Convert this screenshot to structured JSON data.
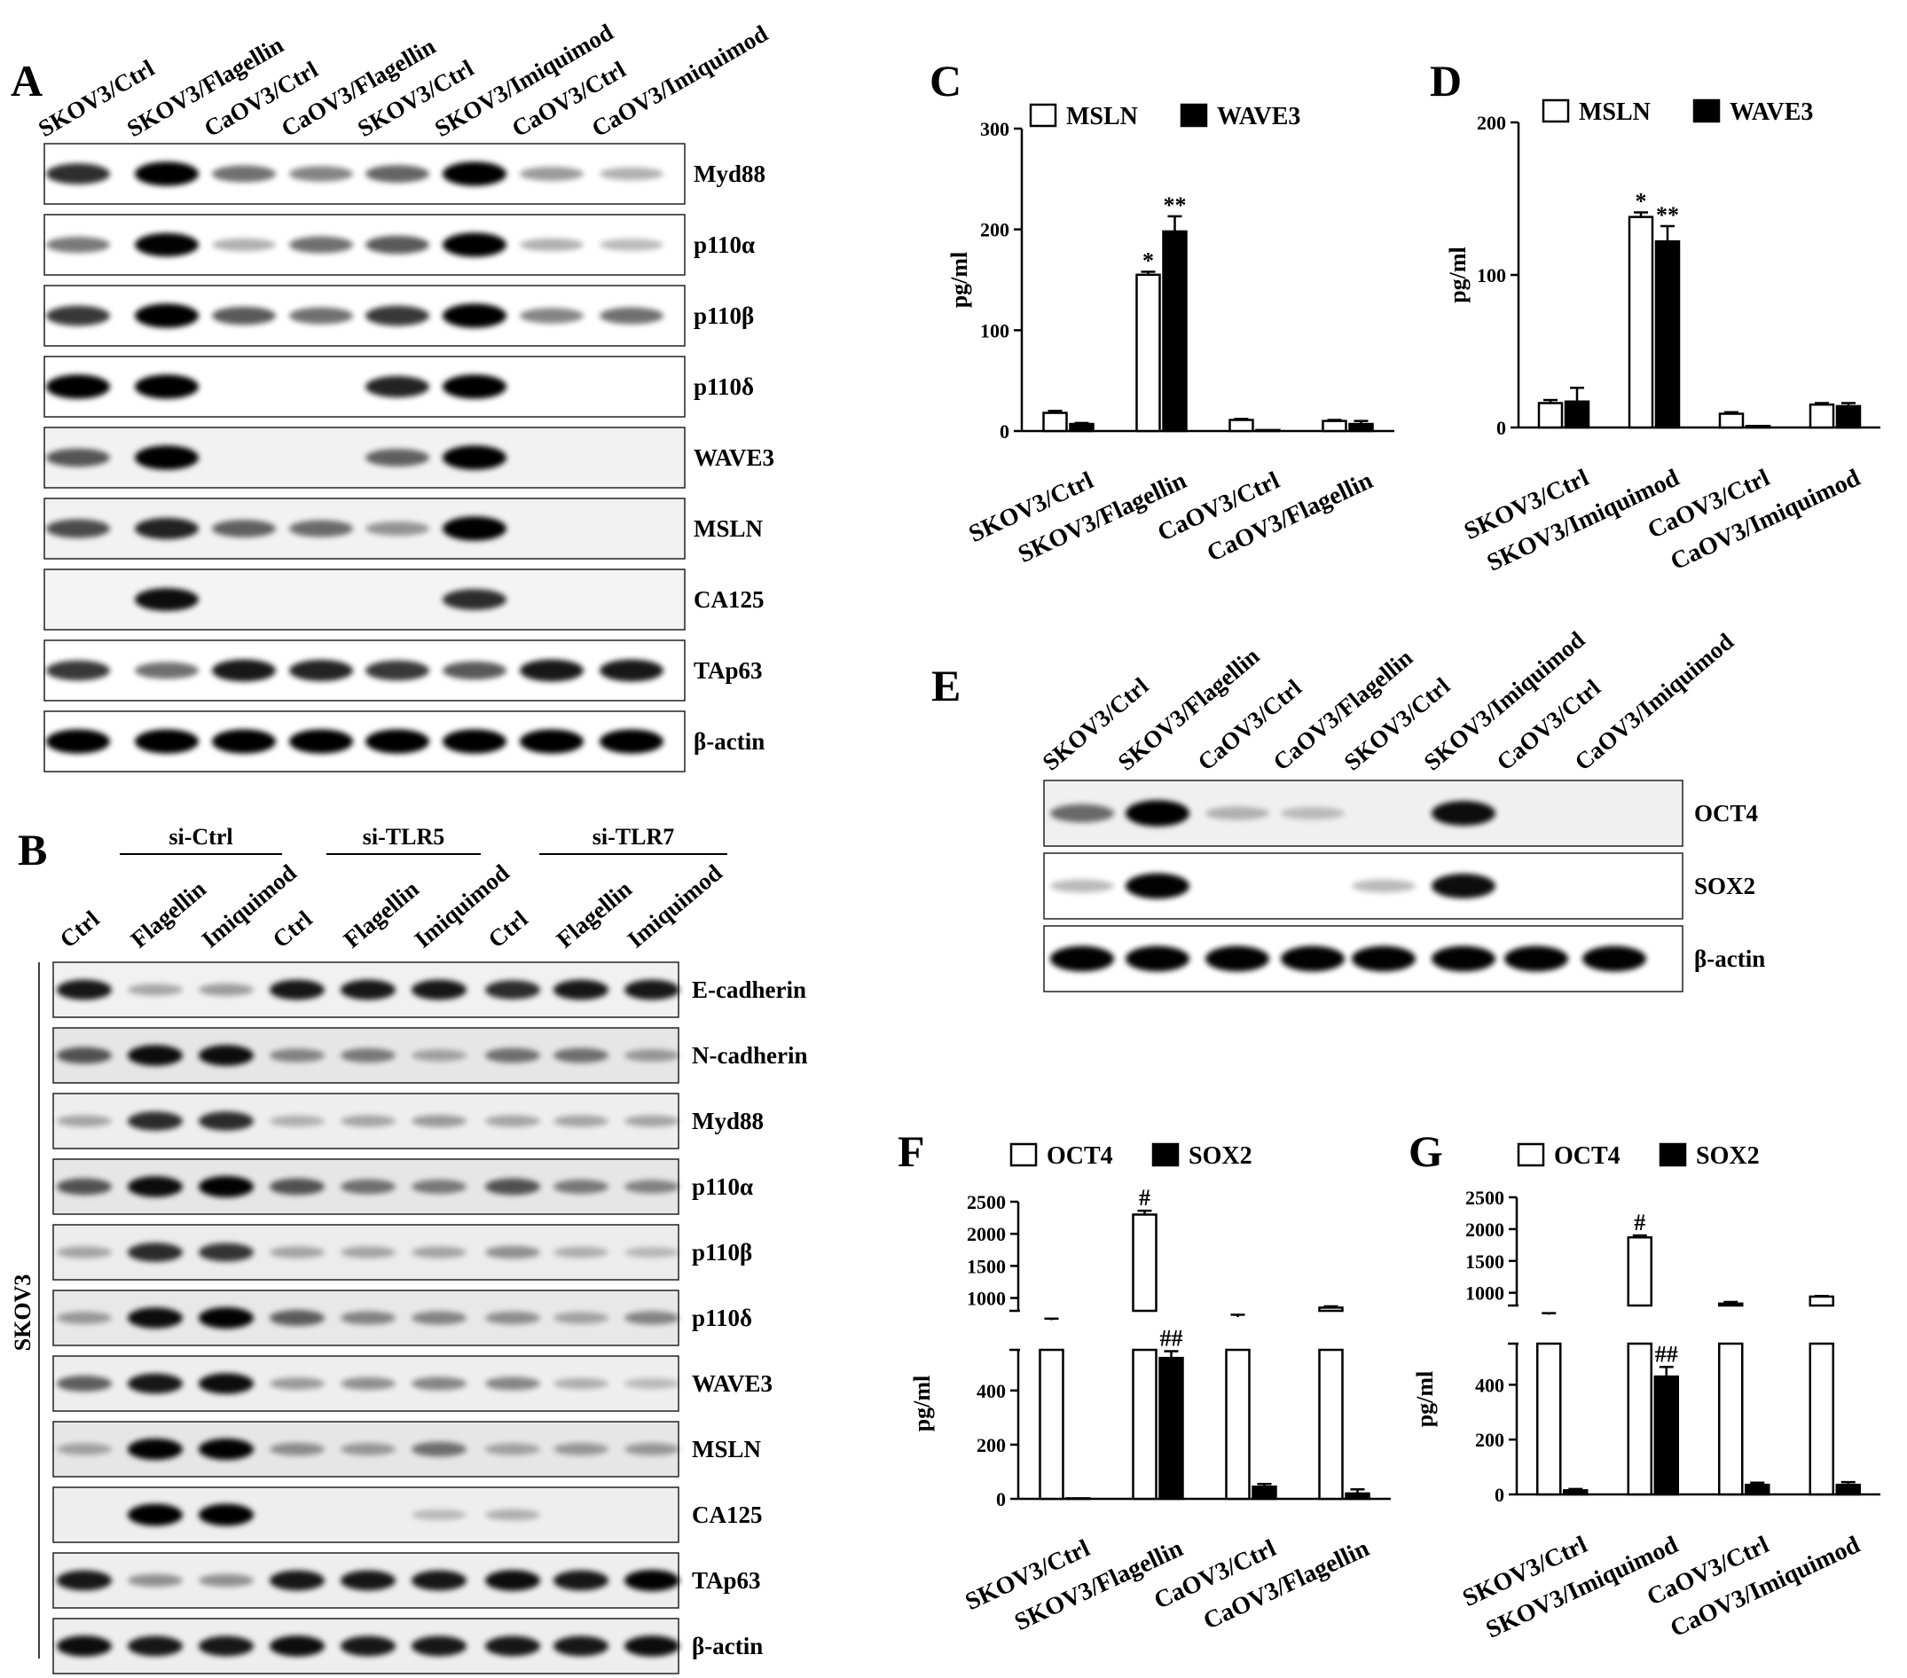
{
  "panels": {
    "A": {
      "letter": "A",
      "lanes": [
        "SKOV3/Ctrl",
        "SKOV3/Flagellin",
        "CaOV3/Ctrl",
        "CaOV3/Flagellin",
        "SKOV3/Ctrl",
        "SKOV3/Imiquimod",
        "CaOV3/Ctrl",
        "CaOV3/Imiquimod"
      ],
      "proteins": [
        {
          "name": "Myd88",
          "bg": "#ffffff",
          "bands": [
            0.75,
            1,
            0.45,
            0.35,
            0.5,
            1,
            0.25,
            0.15
          ]
        },
        {
          "name": "p110α",
          "bg": "#ffffff",
          "bands": [
            0.4,
            0.95,
            0.15,
            0.45,
            0.55,
            1,
            0.15,
            0.1
          ]
        },
        {
          "name": "p110β",
          "bg": "#ffffff",
          "bands": [
            0.7,
            1,
            0.55,
            0.45,
            0.7,
            1,
            0.35,
            0.45
          ]
        },
        {
          "name": "p110δ",
          "bg": "#ffffff",
          "bands": [
            1,
            1,
            0,
            0,
            0.8,
            1,
            0,
            0
          ]
        },
        {
          "name": "WAVE3",
          "bg": "#f2f2f2",
          "bands": [
            0.55,
            1,
            0,
            0,
            0.5,
            1,
            0,
            0
          ]
        },
        {
          "name": "MSLN",
          "bg": "#f2f2f2",
          "bands": [
            0.6,
            0.8,
            0.5,
            0.45,
            0.25,
            1,
            0,
            0
          ]
        },
        {
          "name": "CA125",
          "bg": "#f4f4f4",
          "bands": [
            0,
            0.9,
            0,
            0,
            0,
            0.75,
            0,
            0
          ]
        },
        {
          "name": "TAp63",
          "bg": "#ffffff",
          "bands": [
            0.7,
            0.45,
            0.85,
            0.8,
            0.7,
            0.55,
            0.85,
            0.85
          ]
        },
        {
          "name": "β-actin",
          "bg": "#ffffff",
          "bands": [
            1,
            1,
            1,
            1,
            1,
            1,
            1,
            1
          ]
        }
      ]
    },
    "B": {
      "letter": "B",
      "groups": [
        "si-Ctrl",
        "si-TLR5",
        "si-TLR7"
      ],
      "lanes": [
        "Ctrl",
        "Flagellin",
        "Imiquimod",
        "Ctrl",
        "Flagellin",
        "Imiquimod",
        "Ctrl",
        "Flagellin",
        "Imiquimod"
      ],
      "side_label": "SKOV3",
      "proteins": [
        {
          "name": "E-cadherin",
          "bg": "#f1f1f1",
          "bands": [
            0.85,
            0.15,
            0.2,
            0.85,
            0.85,
            0.85,
            0.75,
            0.85,
            0.85
          ]
        },
        {
          "name": "N-cadherin",
          "bg": "#e6e6e6",
          "bands": [
            0.55,
            0.9,
            0.9,
            0.3,
            0.35,
            0.15,
            0.4,
            0.4,
            0.2
          ]
        },
        {
          "name": "Myd88",
          "bg": "#eeeeee",
          "bands": [
            0.15,
            0.75,
            0.75,
            0.1,
            0.15,
            0.2,
            0.15,
            0.15,
            0.15
          ]
        },
        {
          "name": "p110α",
          "bg": "#e6e6e6",
          "bands": [
            0.55,
            0.9,
            0.95,
            0.55,
            0.4,
            0.35,
            0.55,
            0.35,
            0.3
          ]
        },
        {
          "name": "p110β",
          "bg": "#ececec",
          "bands": [
            0.15,
            0.75,
            0.7,
            0.15,
            0.15,
            0.15,
            0.25,
            0.1,
            0.05
          ]
        },
        {
          "name": "p110δ",
          "bg": "#e8e8e8",
          "bands": [
            0.2,
            0.9,
            0.95,
            0.5,
            0.3,
            0.3,
            0.25,
            0.15,
            0.3
          ]
        },
        {
          "name": "WAVE3",
          "bg": "#eeeeee",
          "bands": [
            0.5,
            0.85,
            0.9,
            0.2,
            0.25,
            0.3,
            0.3,
            0.1,
            0.05
          ]
        },
        {
          "name": "MSLN",
          "bg": "#e6e6e6",
          "bands": [
            0.15,
            0.95,
            0.95,
            0.25,
            0.2,
            0.4,
            0.15,
            0.2,
            0.2
          ]
        },
        {
          "name": "CA125",
          "bg": "#eeeeee",
          "bands": [
            0,
            1,
            1,
            0,
            0,
            0.05,
            0.1,
            0,
            0
          ]
        },
        {
          "name": "TAp63",
          "bg": "#eeeeee",
          "bands": [
            0.85,
            0.25,
            0.25,
            0.85,
            0.85,
            0.85,
            0.9,
            0.85,
            0.95
          ]
        },
        {
          "name": "β-actin",
          "bg": "#eeeeee",
          "bands": [
            0.9,
            0.85,
            0.85,
            0.9,
            0.85,
            0.85,
            0.85,
            0.85,
            0.9
          ]
        }
      ]
    },
    "E": {
      "letter": "E",
      "lanes": [
        "SKOV3/Ctrl",
        "SKOV3/Flagellin",
        "CaOV3/Ctrl",
        "CaOV3/Flagellin",
        "SKOV3/Ctrl",
        "SKOV3/Imiquimod",
        "CaOV3/Ctrl",
        "CaOV3/Imiquimod"
      ],
      "proteins": [
        {
          "name": "OCT4",
          "bg": "#f0f0f0",
          "bands": [
            0.45,
            1,
            0.1,
            0.05,
            0,
            0.9,
            0,
            0
          ]
        },
        {
          "name": "SOX2",
          "bg": "#ffffff",
          "bands": [
            0.1,
            0.95,
            0,
            0,
            0.1,
            0.9,
            0,
            0
          ]
        },
        {
          "name": "β-actin",
          "bg": "#ffffff",
          "bands": [
            0.95,
            0.95,
            0.95,
            0.95,
            0.95,
            0.95,
            0.95,
            0.95
          ]
        }
      ]
    }
  },
  "chart_data": [
    {
      "panel": "C",
      "type": "bar",
      "ylabel": "pg/ml",
      "ylim": [
        0,
        300
      ],
      "yticks": [
        0,
        100,
        200,
        300
      ],
      "categories": [
        "SKOV3/Ctrl",
        "SKOV3/Flagellin",
        "CaOV3/Ctrl",
        "CaOV3/Flagellin"
      ],
      "series": [
        {
          "name": "MSLN",
          "fill": "#ffffff",
          "values": [
            18,
            155,
            11,
            10
          ],
          "errors": [
            2,
            3,
            1,
            1
          ],
          "sig": [
            "",
            "*",
            "",
            ""
          ]
        },
        {
          "name": "WAVE3",
          "fill": "#000000",
          "values": [
            7,
            198,
            1,
            7
          ],
          "errors": [
            1,
            15,
            0,
            3
          ],
          "sig": [
            "",
            "**",
            "",
            ""
          ]
        }
      ]
    },
    {
      "panel": "D",
      "type": "bar",
      "ylabel": "pg/ml",
      "ylim": [
        0,
        200
      ],
      "yticks": [
        0,
        100,
        200
      ],
      "categories": [
        "SKOV3/Ctrl",
        "SKOV3/Imiquimod",
        "CaOV3/Ctrl",
        "CaOV3/Imiquimod"
      ],
      "series": [
        {
          "name": "MSLN",
          "fill": "#ffffff",
          "values": [
            16,
            138,
            9,
            15
          ],
          "errors": [
            2,
            3,
            1,
            1
          ],
          "sig": [
            "",
            "*",
            "",
            ""
          ]
        },
        {
          "name": "WAVE3",
          "fill": "#000000",
          "values": [
            17,
            122,
            1,
            14
          ],
          "errors": [
            9,
            10,
            0,
            2
          ],
          "sig": [
            "",
            "**",
            "",
            ""
          ]
        }
      ]
    },
    {
      "panel": "F",
      "type": "bar",
      "ylabel": "pg/ml",
      "broken_axis": true,
      "lower_ylim": [
        0,
        550
      ],
      "upper_ylim": [
        800,
        2500
      ],
      "lower_yticks": [
        0,
        200,
        400
      ],
      "upper_yticks": [
        1000,
        1500,
        2000,
        2500
      ],
      "categories": [
        "SKOV3/Ctrl",
        "SKOV3/Flagellin",
        "CaOV3/Ctrl",
        "CaOV3/Flagellin"
      ],
      "series": [
        {
          "name": "OCT4",
          "fill": "#ffffff",
          "values": [
            740,
            2300,
            760,
            850
          ],
          "errors": [
            10,
            60,
            15,
            20
          ],
          "sig": [
            "",
            "#",
            "",
            ""
          ]
        },
        {
          "name": "SOX2",
          "fill": "#000000",
          "values": [
            2,
            520,
            45,
            20
          ],
          "errors": [
            0,
            25,
            10,
            15
          ],
          "sig": [
            "",
            "##",
            "",
            ""
          ]
        }
      ]
    },
    {
      "panel": "G",
      "type": "bar",
      "ylabel": "pg/ml",
      "broken_axis": true,
      "lower_ylim": [
        0,
        550
      ],
      "upper_ylim": [
        800,
        2500
      ],
      "lower_yticks": [
        0,
        200,
        400
      ],
      "upper_yticks": [
        1000,
        1500,
        2000,
        2500
      ],
      "categories": [
        "SKOV3/Ctrl",
        "SKOV3/Imiquimod",
        "CaOV3/Ctrl",
        "CaOV3/Imiquimod"
      ],
      "series": [
        {
          "name": "OCT4",
          "fill": "#ffffff",
          "values": [
            740,
            1870,
            830,
            940
          ],
          "errors": [
            10,
            30,
            25,
            10
          ],
          "sig": [
            "",
            "#",
            "",
            ""
          ]
        },
        {
          "name": "SOX2",
          "fill": "#000000",
          "values": [
            15,
            430,
            35,
            35
          ],
          "errors": [
            5,
            35,
            8,
            10
          ],
          "sig": [
            "",
            "##",
            "",
            ""
          ]
        }
      ]
    }
  ]
}
